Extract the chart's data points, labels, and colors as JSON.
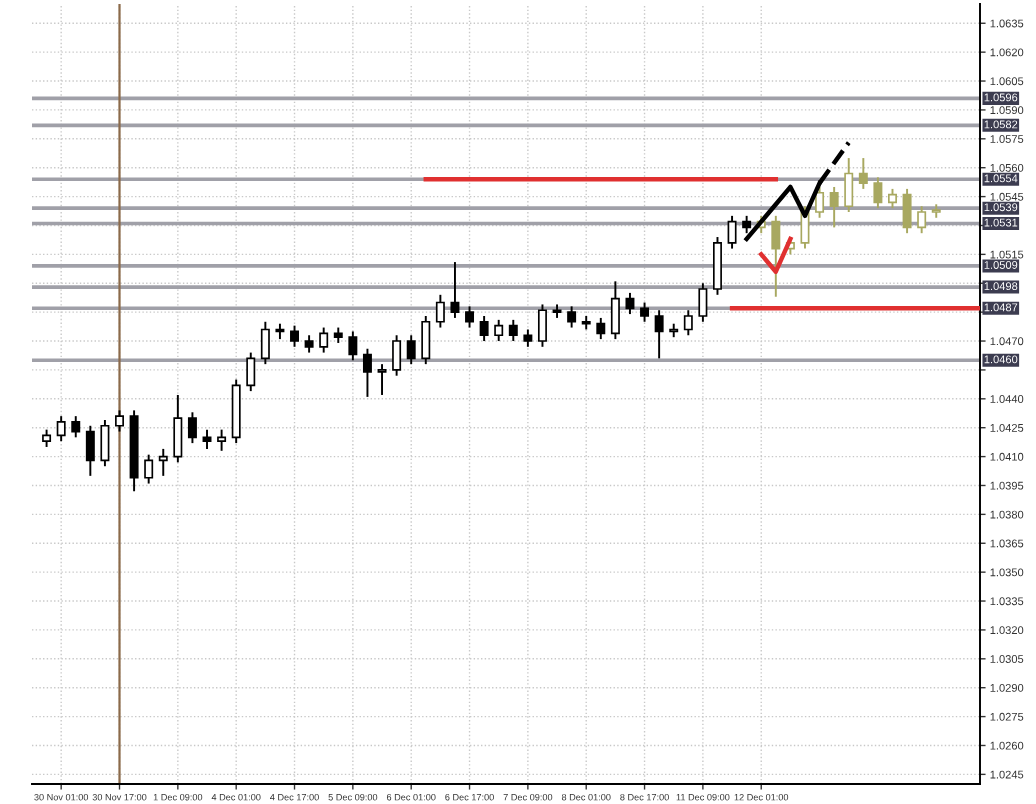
{
  "chart_data": {
    "type": "candlestick",
    "categories": [
      null,
      "30 Nov 01:00",
      null,
      null,
      null,
      "30 Nov 17:00",
      null,
      null,
      null,
      "1 Dec 09:00",
      null,
      null,
      null,
      "4 Dec 01:00",
      null,
      null,
      null,
      "4 Dec 17:00",
      null,
      null,
      null,
      "5 Dec 09:00",
      null,
      null,
      null,
      "6 Dec 01:00",
      null,
      null,
      null,
      "6 Dec 17:00",
      null,
      null,
      null,
      "7 Dec 09:00",
      null,
      null,
      null,
      "8 Dec 01:00",
      null,
      null,
      null,
      "8 Dec 17:00",
      null,
      null,
      null,
      "11 Dec 09:00",
      null,
      null,
      null,
      "12 Dec 01:00",
      null,
      null,
      null,
      null,
      null,
      null,
      null,
      null,
      null,
      null,
      null,
      null,
      null,
      null,
      null
    ],
    "ohlc": [
      [
        1.0418,
        1.0424,
        1.0415,
        1.0421
      ],
      [
        1.0421,
        1.0431,
        1.0418,
        1.0428
      ],
      [
        1.0428,
        1.0431,
        1.042,
        1.0423
      ],
      [
        1.0423,
        1.0426,
        1.04,
        1.0408
      ],
      [
        1.0408,
        1.0429,
        1.0405,
        1.0426
      ],
      [
        1.0426,
        1.0434,
        1.0423,
        1.0431
      ],
      [
        1.0431,
        1.0434,
        1.0392,
        1.0399
      ],
      [
        1.0399,
        1.0411,
        1.0396,
        1.0408
      ],
      [
        1.0408,
        1.0414,
        1.04,
        1.041
      ],
      [
        1.041,
        1.0442,
        1.0407,
        1.043
      ],
      [
        1.043,
        1.0433,
        1.0417,
        1.042
      ],
      [
        1.042,
        1.0424,
        1.0414,
        1.0418
      ],
      [
        1.0418,
        1.0424,
        1.0413,
        1.042
      ],
      [
        1.042,
        1.045,
        1.0417,
        1.0447
      ],
      [
        1.0447,
        1.0464,
        1.0444,
        1.0461
      ],
      [
        1.0461,
        1.048,
        1.0458,
        1.0476
      ],
      [
        1.0476,
        1.0479,
        1.0471,
        1.0475
      ],
      [
        1.0475,
        1.0478,
        1.0467,
        1.047
      ],
      [
        1.047,
        1.0473,
        1.0464,
        1.0467
      ],
      [
        1.0467,
        1.0477,
        1.0464,
        1.0474
      ],
      [
        1.0474,
        1.0477,
        1.0469,
        1.0472
      ],
      [
        1.0472,
        1.0475,
        1.046,
        1.0463
      ],
      [
        1.0463,
        1.0466,
        1.0441,
        1.0454
      ],
      [
        1.0454,
        1.0458,
        1.0442,
        1.0455
      ],
      [
        1.0455,
        1.0473,
        1.0452,
        1.047
      ],
      [
        1.047,
        1.0473,
        1.0458,
        1.0461
      ],
      [
        1.0461,
        1.0483,
        1.0458,
        1.048
      ],
      [
        1.048,
        1.0494,
        1.0477,
        1.049
      ],
      [
        1.049,
        1.0511,
        1.0482,
        1.0485
      ],
      [
        1.0485,
        1.0488,
        1.0477,
        1.048
      ],
      [
        1.048,
        1.0483,
        1.047,
        1.0473
      ],
      [
        1.0473,
        1.0481,
        1.047,
        1.0478
      ],
      [
        1.0478,
        1.0481,
        1.047,
        1.0473
      ],
      [
        1.0473,
        1.0476,
        1.0467,
        1.047
      ],
      [
        1.047,
        1.0489,
        1.0467,
        1.0486
      ],
      [
        1.0486,
        1.0489,
        1.0482,
        1.0485
      ],
      [
        1.0485,
        1.0488,
        1.0477,
        1.048
      ],
      [
        1.048,
        1.0483,
        1.0476,
        1.0479
      ],
      [
        1.0479,
        1.0482,
        1.0471,
        1.0474
      ],
      [
        1.0474,
        1.0501,
        1.0471,
        1.0492
      ],
      [
        1.0492,
        1.0495,
        1.0484,
        1.0487
      ],
      [
        1.0487,
        1.049,
        1.048,
        1.0483
      ],
      [
        1.0483,
        1.0486,
        1.0461,
        1.0475
      ],
      [
        1.0475,
        1.0479,
        1.0472,
        1.0476
      ],
      [
        1.0476,
        1.0486,
        1.0473,
        1.0483
      ],
      [
        1.0483,
        1.05,
        1.048,
        1.0497
      ],
      [
        1.0497,
        1.0524,
        1.0494,
        1.0521
      ],
      [
        1.0521,
        1.0535,
        1.0518,
        1.0532
      ],
      [
        1.0532,
        1.0535,
        1.0526,
        1.0529
      ],
      [
        1.0529,
        1.0535,
        1.0526,
        1.0532
      ],
      [
        1.0532,
        1.0535,
        1.0493,
        1.0518
      ],
      [
        1.0518,
        1.0524,
        1.0515,
        1.0521
      ],
      [
        1.0521,
        1.054,
        1.0518,
        1.0537
      ],
      [
        1.0537,
        1.055,
        1.0534,
        1.0547
      ],
      [
        1.0547,
        1.055,
        1.0529,
        1.054
      ],
      [
        1.054,
        1.0565,
        1.0537,
        1.0557
      ],
      [
        1.0557,
        1.0565,
        1.0549,
        1.0552
      ],
      [
        1.0552,
        1.0555,
        1.0539,
        1.0542
      ],
      [
        1.0542,
        1.0549,
        1.0539,
        1.0546
      ],
      [
        1.0546,
        1.0549,
        1.0526,
        1.0529
      ],
      [
        1.0529,
        1.054,
        1.0526,
        1.0537
      ],
      [
        1.0537,
        1.0541,
        1.0534,
        1.0538
      ],
      null,
      null,
      null
    ],
    "colors": [
      "#000000",
      "#000000",
      "#000000",
      "#000000",
      "#000000",
      "#000000",
      "#000000",
      "#000000",
      "#000000",
      "#000000",
      "#000000",
      "#000000",
      "#000000",
      "#000000",
      "#000000",
      "#000000",
      "#000000",
      "#000000",
      "#000000",
      "#000000",
      "#000000",
      "#000000",
      "#000000",
      "#000000",
      "#000000",
      "#000000",
      "#000000",
      "#000000",
      "#000000",
      "#000000",
      "#000000",
      "#000000",
      "#000000",
      "#000000",
      "#000000",
      "#000000",
      "#000000",
      "#000000",
      "#000000",
      "#000000",
      "#000000",
      "#000000",
      "#000000",
      "#000000",
      "#000000",
      "#000000",
      "#000000",
      "#000000",
      "#000000",
      "#a8a860",
      "#a8a860",
      "#a8a860",
      "#a8a860",
      "#a8a860",
      "#a8a860",
      "#a8a860",
      "#a8a860",
      "#a8a860",
      "#a8a860",
      "#a8a860",
      "#a8a860",
      "#a8a860",
      null,
      null,
      null
    ],
    "series": [
      {
        "type": "line",
        "color": "#e03030",
        "line_style": "solid",
        "values": [
          null,
          null,
          null,
          null,
          null,
          null,
          null,
          null,
          null,
          null,
          null,
          null,
          null,
          null,
          null,
          null,
          null,
          null,
          null,
          null,
          null,
          null,
          null,
          null,
          null,
          null,
          1.0554,
          1.0554,
          1.0554,
          1.0554,
          1.0554,
          1.0554,
          1.0554,
          1.0554,
          1.0554,
          1.0554,
          1.0554,
          1.0554,
          1.0554,
          1.0554,
          1.0554,
          1.0554,
          1.0554,
          1.0554,
          1.0554,
          1.0554,
          1.0554,
          1.0554,
          1.0554,
          1.0554,
          1.0554,
          null,
          null,
          null,
          null,
          null,
          null,
          null,
          null,
          null,
          null,
          null,
          null,
          null,
          null
        ]
      },
      {
        "type": "line",
        "color": "#e03030",
        "line_style": "solid",
        "values": [
          null,
          null,
          null,
          null,
          null,
          null,
          null,
          null,
          null,
          null,
          null,
          null,
          null,
          null,
          null,
          null,
          null,
          null,
          null,
          null,
          null,
          null,
          null,
          null,
          null,
          null,
          null,
          null,
          null,
          null,
          null,
          null,
          null,
          null,
          null,
          null,
          null,
          null,
          null,
          null,
          null,
          null,
          null,
          null,
          null,
          null,
          null,
          1.0487,
          1.0487,
          1.0487,
          1.0487,
          1.0487,
          1.0487,
          1.0487,
          1.0487,
          1.0487,
          1.0487,
          1.0487,
          1.0487,
          1.0487,
          1.0487,
          1.0487,
          1.0487,
          1.0487,
          1.0487
        ]
      },
      {
        "type": "line",
        "color": "#000000",
        "line_style": "solid",
        "values": [
          null,
          null,
          null,
          null,
          null,
          null,
          null,
          null,
          null,
          null,
          null,
          null,
          null,
          null,
          null,
          null,
          null,
          null,
          null,
          null,
          null,
          null,
          null,
          null,
          null,
          null,
          null,
          null,
          null,
          null,
          null,
          null,
          null,
          null,
          null,
          null,
          null,
          null,
          null,
          null,
          null,
          null,
          null,
          null,
          null,
          null,
          null,
          null,
          1.0523,
          null,
          null,
          1.055,
          1.0535,
          1.0552,
          null,
          null,
          null,
          null,
          null,
          null,
          null,
          null,
          null,
          null,
          null
        ]
      },
      {
        "type": "line",
        "color": "#000000",
        "line_style": "dashed",
        "values": [
          null,
          null,
          null,
          null,
          null,
          null,
          null,
          null,
          null,
          null,
          null,
          null,
          null,
          null,
          null,
          null,
          null,
          null,
          null,
          null,
          null,
          null,
          null,
          null,
          null,
          null,
          null,
          null,
          null,
          null,
          null,
          null,
          null,
          null,
          null,
          null,
          null,
          null,
          null,
          null,
          null,
          null,
          null,
          null,
          null,
          null,
          null,
          null,
          null,
          null,
          null,
          null,
          null,
          1.0552,
          null,
          1.0573,
          null,
          null,
          null,
          null,
          null,
          null,
          null,
          null,
          null
        ]
      },
      {
        "type": "line",
        "color": "#e03030",
        "line_style": "solid",
        "values": [
          null,
          null,
          null,
          null,
          null,
          null,
          null,
          null,
          null,
          null,
          null,
          null,
          null,
          null,
          null,
          null,
          null,
          null,
          null,
          null,
          null,
          null,
          null,
          null,
          null,
          null,
          null,
          null,
          null,
          null,
          null,
          null,
          null,
          null,
          null,
          null,
          null,
          null,
          null,
          null,
          null,
          null,
          null,
          null,
          null,
          null,
          null,
          null,
          null,
          1.0515,
          1.0506,
          1.0523,
          null,
          null,
          null,
          null,
          null,
          null,
          null,
          null,
          null,
          null,
          null,
          null,
          null
        ]
      }
    ],
    "ylim": [
      1.024,
      1.0645
    ],
    "yticks": [
      1.0635,
      {
        "value": 1.062,
        "label": "1.0620"
      },
      1.0605,
      {
        "value": 1.059,
        "label": "1.0590"
      },
      1.0575,
      {
        "value": 1.056,
        "label": "1.0560"
      },
      1.0545,
      {
        "value": 1.053,
        "label": null
      },
      1.0515,
      {
        "value": 1.05,
        "label": null
      },
      {
        "value": 1.0485,
        "label": null
      },
      {
        "value": 1.047,
        "label": "1.0470"
      },
      {
        "value": 1.0455,
        "label": null
      },
      {
        "value": 1.044,
        "label": "1.0440"
      },
      1.0425,
      {
        "value": 1.041,
        "label": "1.0410"
      },
      1.0395,
      {
        "value": 1.038,
        "label": "1.0380"
      },
      1.0365,
      {
        "value": 1.035,
        "label": "1.0350"
      },
      1.0335,
      {
        "value": 1.032,
        "label": "1.0320"
      },
      1.0305,
      {
        "value": 1.029,
        "label": "1.0290"
      },
      1.0275,
      {
        "value": 1.026,
        "label": "1.0260"
      },
      1.0245
    ],
    "ref_lines": [
      {
        "axis": "y",
        "value": 1.0596,
        "label": "1.0596",
        "color": "#a0a0a8"
      },
      {
        "axis": "y",
        "value": 1.0582,
        "label": "1.0582",
        "color": "#a0a0a8"
      },
      {
        "axis": "y",
        "value": 1.0554,
        "label": "1.0554",
        "color": "#a0a0a8"
      },
      {
        "axis": "y",
        "value": 1.0539,
        "label": "1.0539",
        "color": "#a0a0a8"
      },
      {
        "axis": "y",
        "value": 1.0531,
        "label": "1.0531",
        "color": "#a0a0a8"
      },
      {
        "axis": "y",
        "value": 1.0509,
        "label": "1.0509",
        "color": "#a0a0a8"
      },
      {
        "axis": "y",
        "value": 1.0498,
        "label": "1.0498",
        "color": "#a0a0a8"
      },
      {
        "axis": "y",
        "value": 1.0487,
        "label": "1.0487",
        "color": "#a0a0a8"
      },
      {
        "axis": "y",
        "value": 1.046,
        "label": "1.0460",
        "color": "#a0a0a8"
      },
      {
        "axis": "x",
        "value": "30 Nov 17:00",
        "color": "#8b6a4a"
      }
    ],
    "grid": true
  }
}
